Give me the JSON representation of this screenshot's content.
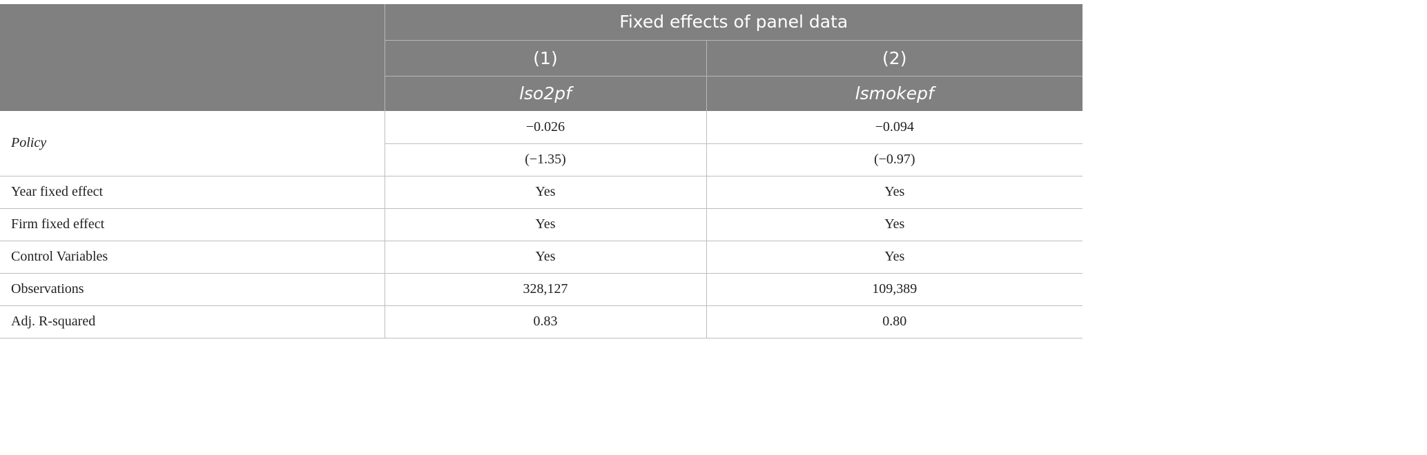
{
  "header": {
    "group_title": "Fixed effects of panel data",
    "col_numbers": [
      "(1)",
      "(2)"
    ],
    "col_vars": [
      "lso2pf",
      "lsmokepf"
    ]
  },
  "rows": {
    "policy": {
      "label": "Policy",
      "coef": [
        "−0.026",
        "−0.094"
      ],
      "tstat": [
        "(−1.35)",
        "(−0.97)"
      ]
    },
    "year_fe": {
      "label": "Year fixed effect",
      "values": [
        "Yes",
        "Yes"
      ]
    },
    "firm_fe": {
      "label": "Firm fixed effect",
      "values": [
        "Yes",
        "Yes"
      ]
    },
    "controls": {
      "label": "Control Variables",
      "values": [
        "Yes",
        "Yes"
      ]
    },
    "obs": {
      "label": "Observations",
      "values": [
        "328,127",
        "109,389"
      ]
    },
    "adj_r2": {
      "label": "Adj. R-squared",
      "values": [
        "0.83",
        "0.80"
      ]
    }
  },
  "colors": {
    "header_bg": "#808080",
    "header_text": "#ffffff",
    "grid": "#bdbdbd"
  }
}
